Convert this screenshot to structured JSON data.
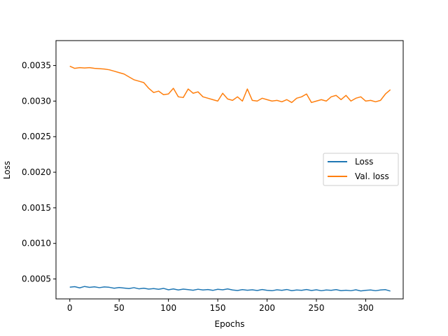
{
  "chart_data": {
    "type": "line",
    "title": "",
    "xlabel": "Epochs",
    "ylabel": "Loss",
    "xlim": [
      -14,
      338
    ],
    "ylim": [
      0.00022,
      0.00385
    ],
    "xticks": [
      0,
      50,
      100,
      150,
      200,
      250,
      300
    ],
    "yticks": [
      0.0005,
      0.001,
      0.0015,
      0.002,
      0.0025,
      0.003,
      0.0035
    ],
    "ytick_labels": [
      "0.0005",
      "0.0010",
      "0.0015",
      "0.0020",
      "0.0025",
      "0.0030",
      "0.0035"
    ],
    "grid": false,
    "legend_position": "center-right",
    "series": [
      {
        "name": "Loss",
        "color": "#1f77b4",
        "x": [
          0,
          5,
          10,
          15,
          20,
          25,
          30,
          35,
          40,
          45,
          50,
          55,
          60,
          65,
          70,
          75,
          80,
          85,
          90,
          95,
          100,
          105,
          110,
          115,
          120,
          125,
          130,
          135,
          140,
          145,
          150,
          155,
          160,
          165,
          170,
          175,
          180,
          185,
          190,
          195,
          200,
          205,
          210,
          215,
          220,
          225,
          230,
          235,
          240,
          245,
          250,
          255,
          260,
          265,
          270,
          275,
          280,
          285,
          290,
          295,
          300,
          305,
          310,
          315,
          320,
          325
        ],
        "y": [
          0.000385,
          0.000392,
          0.000375,
          0.000395,
          0.000382,
          0.00039,
          0.000378,
          0.000388,
          0.000383,
          0.00037,
          0.00038,
          0.000372,
          0.000365,
          0.000378,
          0.000362,
          0.00037,
          0.000358,
          0.000365,
          0.000355,
          0.000368,
          0.000348,
          0.00036,
          0.000345,
          0.000358,
          0.00035,
          0.000342,
          0.000356,
          0.000345,
          0.000352,
          0.00034,
          0.000355,
          0.000348,
          0.00036,
          0.000345,
          0.000338,
          0.00035,
          0.000342,
          0.000348,
          0.000338,
          0.000352,
          0.00034,
          0.000335,
          0.000348,
          0.00034,
          0.000352,
          0.000336,
          0.000345,
          0.00034,
          0.000352,
          0.000338,
          0.000348,
          0.000335,
          0.000345,
          0.00034,
          0.00035,
          0.000336,
          0.000342,
          0.000335,
          0.000348,
          0.000332,
          0.00034,
          0.000345,
          0.000335,
          0.000345,
          0.00035,
          0.00033
        ]
      },
      {
        "name": "Val. loss",
        "color": "#ff7f0e",
        "x": [
          0,
          5,
          10,
          15,
          20,
          25,
          30,
          35,
          40,
          45,
          50,
          55,
          60,
          65,
          70,
          75,
          80,
          85,
          90,
          95,
          100,
          105,
          110,
          115,
          120,
          125,
          130,
          135,
          140,
          145,
          150,
          155,
          160,
          165,
          170,
          175,
          180,
          185,
          190,
          195,
          200,
          205,
          210,
          215,
          220,
          225,
          230,
          235,
          240,
          245,
          250,
          255,
          260,
          265,
          270,
          275,
          280,
          285,
          290,
          295,
          300,
          305,
          310,
          315,
          320,
          325
        ],
        "y": [
          0.00349,
          0.00346,
          0.00347,
          0.003465,
          0.00347,
          0.00346,
          0.003455,
          0.00345,
          0.00344,
          0.00342,
          0.0034,
          0.00338,
          0.00334,
          0.0033,
          0.00328,
          0.00326,
          0.00318,
          0.00312,
          0.00314,
          0.00309,
          0.0031,
          0.00318,
          0.00306,
          0.00305,
          0.00317,
          0.00311,
          0.00313,
          0.00306,
          0.00304,
          0.00302,
          0.003,
          0.00311,
          0.00303,
          0.00301,
          0.00306,
          0.003,
          0.00317,
          0.00301,
          0.003,
          0.00304,
          0.00302,
          0.003,
          0.00301,
          0.00299,
          0.00302,
          0.00298,
          0.00304,
          0.00306,
          0.0031,
          0.00298,
          0.003,
          0.00302,
          0.003,
          0.00306,
          0.00308,
          0.00302,
          0.00308,
          0.003,
          0.00304,
          0.00306,
          0.003,
          0.00301,
          0.00299,
          0.00301,
          0.0031,
          0.00316
        ]
      }
    ]
  }
}
